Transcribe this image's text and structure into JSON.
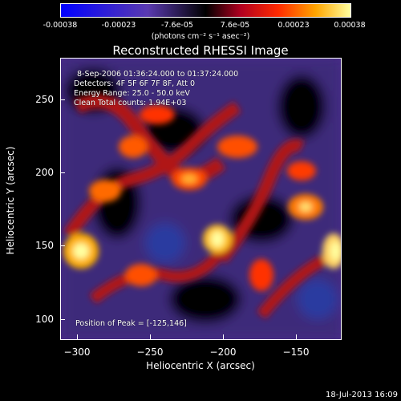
{
  "colorbar": {
    "ticks": [
      "-0.00038",
      "-0.00023",
      "-7.6e-05",
      "7.6e-05",
      "0.00023",
      "0.00038"
    ],
    "units": "(photons cm⁻² s⁻¹ asec⁻²)"
  },
  "title": "Reconstructed RHESSI Image",
  "info": {
    "time": "8-Sep-2006 01:36:24.000 to 01:37:24.000",
    "detectors": "Detectors: 4F 5F 6F 7F 8F, Att 0",
    "energy": "Energy Range: 25.0 - 50.0 keV",
    "clean": "Clean     Total counts: 1.94E+03",
    "peak": "Position of Peak = [-125,146]"
  },
  "axes": {
    "xlabel": "Heliocentric X (arcsec)",
    "ylabel": "Heliocentric Y (arcsec)",
    "xticks": [
      "−300",
      "−250",
      "−200",
      "−150"
    ],
    "yticks": [
      "250",
      "200",
      "150",
      "100"
    ]
  },
  "footer": "18-Jul-2013 16:09"
}
